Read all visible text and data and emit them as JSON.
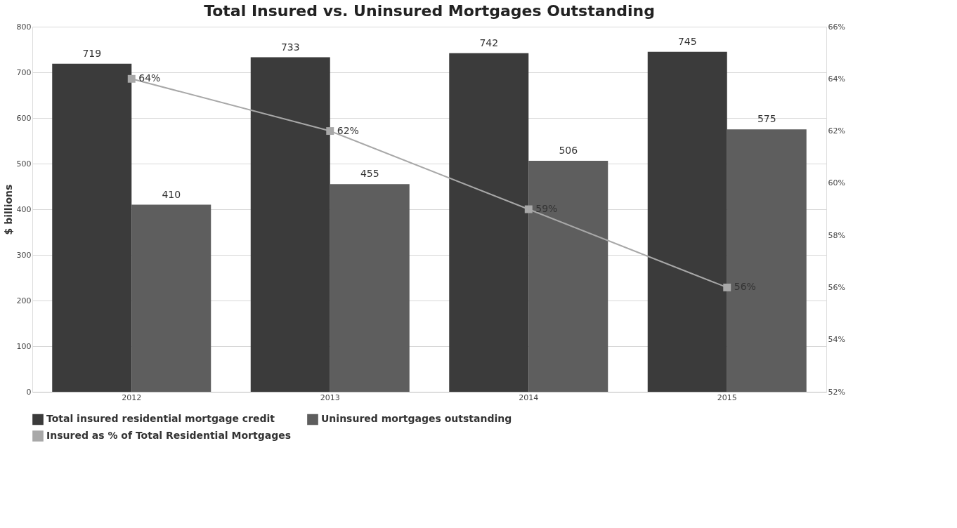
{
  "chart_data": {
    "type": "bar",
    "title": "Total Insured vs. Uninsured Mortgages Outstanding",
    "ylabel": "$ billions",
    "categories": [
      "2012",
      "2013",
      "2014",
      "2015"
    ],
    "series": [
      {
        "name": "Total insured residential mortgage credit",
        "color": "#3b3b3b",
        "values": [
          719,
          733,
          742,
          745
        ],
        "data_labels": true
      },
      {
        "name": "Uninsured mortgages outstanding",
        "color": "#5e5e5e",
        "values": [
          410,
          455,
          506,
          575
        ],
        "data_labels": true
      },
      {
        "name": "Insured as % of Total Residential Mortgages",
        "type": "line",
        "axis": "y2",
        "color": "#a8a8a8",
        "marker": "square",
        "line_style": "solid",
        "values": [
          64,
          62,
          59,
          56
        ],
        "value_labels": [
          "64%",
          "62%",
          "59%",
          "56%"
        ]
      }
    ],
    "ylim": [
      0,
      800
    ],
    "yticks": [
      0,
      100,
      200,
      300,
      400,
      500,
      600,
      700,
      800
    ],
    "y2lim": [
      52,
      66
    ],
    "y2ticks": [
      {
        "value": 52,
        "label": "52%"
      },
      {
        "value": 54,
        "label": "54%"
      },
      {
        "value": 56,
        "label": "56%"
      },
      {
        "value": 58,
        "label": "58%"
      },
      {
        "value": 60,
        "label": "60%"
      },
      {
        "value": 62,
        "label": "62%"
      },
      {
        "value": 64,
        "label": "64%"
      },
      {
        "value": 66,
        "label": "66%"
      }
    ],
    "grid": "y",
    "legend": "bottom"
  }
}
